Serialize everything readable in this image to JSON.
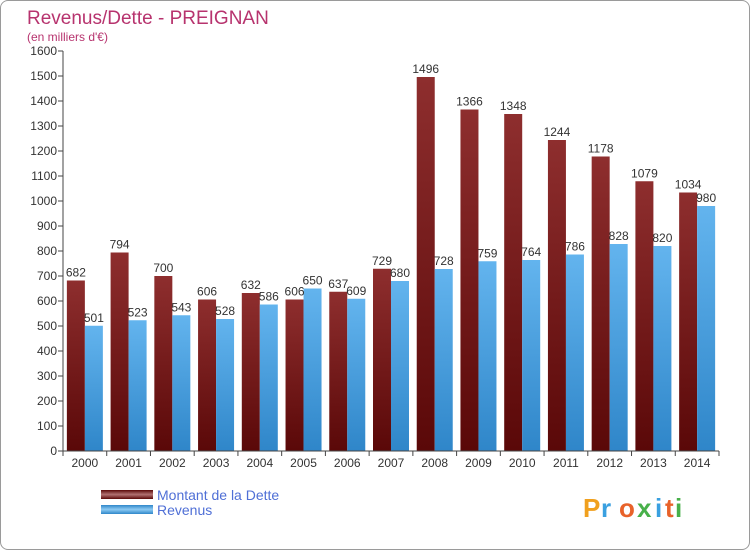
{
  "chart_data": {
    "type": "bar",
    "title": "Revenus/Dette - PREIGNAN",
    "subtitle": "(en milliers d'€)",
    "categories": [
      "2000",
      "2001",
      "2002",
      "2003",
      "2004",
      "2005",
      "2006",
      "2007",
      "2008",
      "2009",
      "2010",
      "2011",
      "2012",
      "2013",
      "2014"
    ],
    "series": [
      {
        "name": "Montant de la Dette",
        "color": "#7a1a1a",
        "values": [
          682,
          794,
          700,
          606,
          632,
          606,
          637,
          729,
          1496,
          1366,
          1348,
          1244,
          1178,
          1079,
          1034
        ]
      },
      {
        "name": "Revenus",
        "color": "#4aa3e3",
        "values": [
          501,
          523,
          543,
          528,
          586,
          650,
          609,
          680,
          728,
          759,
          764,
          786,
          828,
          820,
          980
        ]
      }
    ],
    "ylim": [
      0,
      1600
    ],
    "yticks": [
      0,
      100,
      200,
      300,
      400,
      500,
      600,
      700,
      800,
      900,
      1000,
      1100,
      1200,
      1300,
      1400,
      1500,
      1600
    ],
    "grid": false,
    "legend_placement": "bottom-left"
  },
  "watermark": "Proxiti"
}
